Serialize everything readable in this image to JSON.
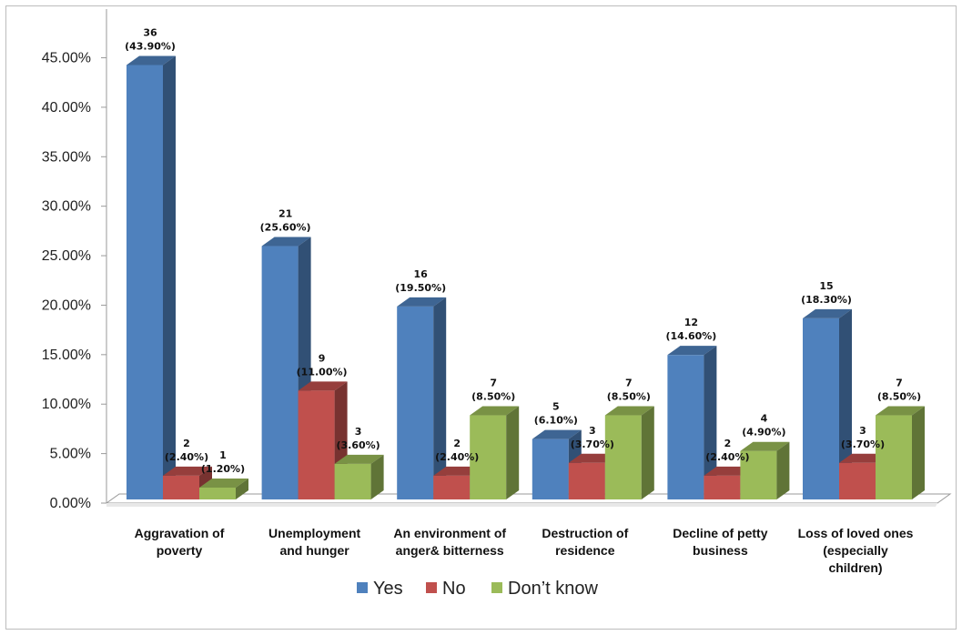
{
  "chart_data": {
    "type": "bar",
    "title": "",
    "xlabel": "",
    "ylabel": "",
    "ylim": [
      0,
      45
    ],
    "y_tick_format": "percent",
    "y_ticks": [
      "0.00%",
      "5.00%",
      "10.00%",
      "15.00%",
      "20.00%",
      "25.00%",
      "30.00%",
      "35.00%",
      "40.00%",
      "45.00%"
    ],
    "categories": [
      [
        "Aggravation of",
        "poverty"
      ],
      [
        "Unemployment",
        "and hunger"
      ],
      [
        "An environment of",
        "anger& bitterness"
      ],
      [
        "Destruction of",
        "residence"
      ],
      [
        "Decline of petty",
        "business"
      ],
      [
        "Loss of loved ones",
        "(especially",
        "children)"
      ]
    ],
    "series": [
      {
        "name": "Yes",
        "color": "#4f81bd",
        "values": [
          43.9,
          25.6,
          19.5,
          6.1,
          14.6,
          18.3
        ],
        "labels_count": [
          "36",
          "21",
          "16",
          "5",
          "12",
          "15"
        ],
        "labels_pct": [
          "(43.90%)",
          "(25.60%)",
          "(19.50%)",
          "(6.10%)",
          "(14.60%)",
          "(18.30%)"
        ]
      },
      {
        "name": "No",
        "color": "#c0504d",
        "values": [
          2.4,
          11.0,
          2.4,
          3.7,
          2.4,
          3.7
        ],
        "labels_count": [
          "2",
          "9",
          "2",
          "3",
          "2",
          "3"
        ],
        "labels_pct": [
          "(2.40%)",
          "(11.00%)",
          "(2.40%)",
          "(3.70%)",
          "(2.40%)",
          "(3.70%)"
        ]
      },
      {
        "name": "Don’t know",
        "color": "#9bbb59",
        "values": [
          1.2,
          3.6,
          8.5,
          8.5,
          4.9,
          8.5
        ],
        "labels_count": [
          "1",
          "3",
          "7",
          "7",
          "4",
          "7"
        ],
        "labels_pct": [
          "(1.20%)",
          "(3.60%)",
          "(8.50%)",
          "(8.50%)",
          "(4.90%)",
          "(8.50%)"
        ]
      }
    ],
    "legend": {
      "position": "bottom"
    },
    "grid": false,
    "style": "3d-clustered-column"
  }
}
